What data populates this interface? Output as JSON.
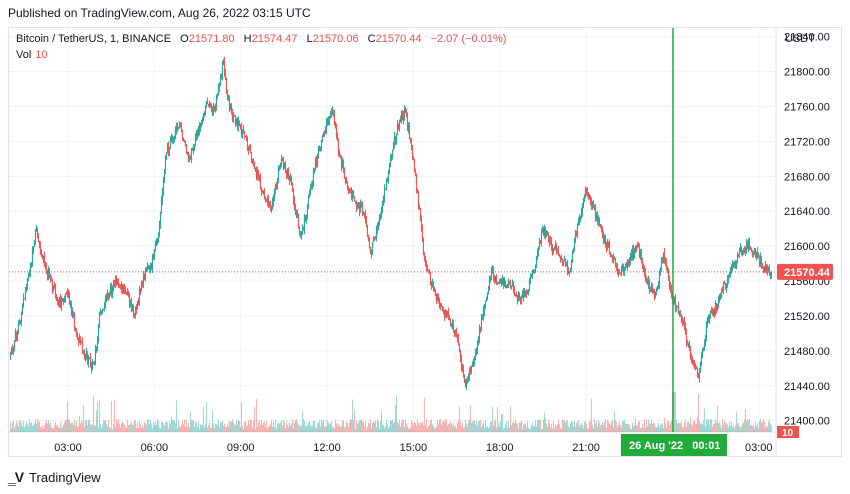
{
  "header": {
    "published": "Published on TradingView.com, Aug 26, 2022 03:15 UTC"
  },
  "legend": {
    "symbol": "Bitcoin / TetherUS, 1, BINANCE",
    "o_label": "O",
    "o": "21571.80",
    "h_label": "H",
    "h": "21574.47",
    "l_label": "L",
    "l": "21570.06",
    "c_label": "C",
    "c": "21570.44",
    "change": "−2.07 (−0.01%)"
  },
  "volume": {
    "label": "Vol",
    "value": "10"
  },
  "axis": {
    "currency": "USDT"
  },
  "crosshair": {
    "label": "26 Aug '22   00:01"
  },
  "last_price": {
    "label": "21570.44",
    "volume_label": "10"
  },
  "footer": {
    "brand": "TradingView",
    "logo": "tradingview-logo-icon"
  },
  "colors": {
    "up": "#26a69a",
    "down": "#ef5350",
    "crosshair": "#22ab3b",
    "grid": "#f0f3fa"
  },
  "chart_data": {
    "type": "candlestick",
    "symbol": "Bitcoin / TetherUS",
    "interval": "1",
    "exchange": "BINANCE",
    "y_axis": {
      "ylim": [
        21387,
        21850
      ],
      "ticks": [
        "21840.00",
        "21800.00",
        "21760.00",
        "21720.00",
        "21680.00",
        "21640.00",
        "21600.00",
        "21560.00",
        "21520.00",
        "21480.00",
        "21440.00",
        "21400.00"
      ],
      "tick_values": [
        21840,
        21800,
        21760,
        21720,
        21680,
        21640,
        21600,
        21560,
        21520,
        21480,
        21440,
        21400
      ]
    },
    "x_axis": {
      "ticks": [
        "03:00",
        "06:00",
        "09:00",
        "12:00",
        "15:00",
        "18:00",
        "21:00",
        "03:00"
      ],
      "tick_hours": [
        3,
        6,
        9,
        12,
        15,
        18,
        21,
        27
      ],
      "xlim_hours": [
        0.95,
        27.6
      ]
    },
    "crosshair_hour": 24.02,
    "last_price": 21570.44,
    "price_path": [
      [
        1.0,
        21475
      ],
      [
        1.3,
        21510
      ],
      [
        1.6,
        21560
      ],
      [
        1.9,
        21620
      ],
      [
        2.1,
        21590
      ],
      [
        2.4,
        21560
      ],
      [
        2.7,
        21535
      ],
      [
        3.0,
        21545
      ],
      [
        3.3,
        21500
      ],
      [
        3.6,
        21475
      ],
      [
        3.9,
        21460
      ],
      [
        4.1,
        21520
      ],
      [
        4.4,
        21545
      ],
      [
        4.7,
        21560
      ],
      [
        5.0,
        21550
      ],
      [
        5.3,
        21520
      ],
      [
        5.6,
        21560
      ],
      [
        5.9,
        21580
      ],
      [
        6.2,
        21630
      ],
      [
        6.4,
        21710
      ],
      [
        6.6,
        21720
      ],
      [
        6.9,
        21740
      ],
      [
        7.2,
        21700
      ],
      [
        7.5,
        21730
      ],
      [
        7.8,
        21760
      ],
      [
        8.1,
        21760
      ],
      [
        8.4,
        21810
      ],
      [
        8.6,
        21760
      ],
      [
        8.9,
        21740
      ],
      [
        9.2,
        21720
      ],
      [
        9.5,
        21690
      ],
      [
        9.8,
        21660
      ],
      [
        10.1,
        21645
      ],
      [
        10.4,
        21700
      ],
      [
        10.7,
        21680
      ],
      [
        10.9,
        21640
      ],
      [
        11.1,
        21610
      ],
      [
        11.4,
        21660
      ],
      [
        11.7,
        21710
      ],
      [
        12.0,
        21740
      ],
      [
        12.2,
        21760
      ],
      [
        12.4,
        21710
      ],
      [
        12.7,
        21670
      ],
      [
        13.0,
        21650
      ],
      [
        13.3,
        21640
      ],
      [
        13.5,
        21590
      ],
      [
        13.8,
        21630
      ],
      [
        14.1,
        21680
      ],
      [
        14.4,
        21730
      ],
      [
        14.7,
        21755
      ],
      [
        15.0,
        21700
      ],
      [
        15.2,
        21640
      ],
      [
        15.4,
        21580
      ],
      [
        15.6,
        21560
      ],
      [
        15.9,
        21530
      ],
      [
        16.2,
        21520
      ],
      [
        16.5,
        21500
      ],
      [
        16.8,
        21440
      ],
      [
        17.1,
        21470
      ],
      [
        17.4,
        21520
      ],
      [
        17.7,
        21570
      ],
      [
        18.0,
        21555
      ],
      [
        18.3,
        21560
      ],
      [
        18.6,
        21540
      ],
      [
        18.9,
        21545
      ],
      [
        19.2,
        21575
      ],
      [
        19.5,
        21620
      ],
      [
        19.8,
        21600
      ],
      [
        20.1,
        21590
      ],
      [
        20.4,
        21570
      ],
      [
        20.7,
        21620
      ],
      [
        21.0,
        21665
      ],
      [
        21.3,
        21640
      ],
      [
        21.6,
        21610
      ],
      [
        21.9,
        21590
      ],
      [
        22.2,
        21570
      ],
      [
        22.5,
        21585
      ],
      [
        22.8,
        21600
      ],
      [
        23.1,
        21560
      ],
      [
        23.4,
        21545
      ],
      [
        23.7,
        21590
      ],
      [
        24.0,
        21540
      ],
      [
        24.3,
        21520
      ],
      [
        24.6,
        21480
      ],
      [
        24.9,
        21450
      ],
      [
        25.2,
        21510
      ],
      [
        25.5,
        21530
      ],
      [
        25.8,
        21555
      ],
      [
        26.1,
        21575
      ],
      [
        26.4,
        21595
      ],
      [
        26.7,
        21600
      ],
      [
        27.0,
        21585
      ],
      [
        27.3,
        21570
      ],
      [
        27.45,
        21570.44
      ]
    ]
  }
}
